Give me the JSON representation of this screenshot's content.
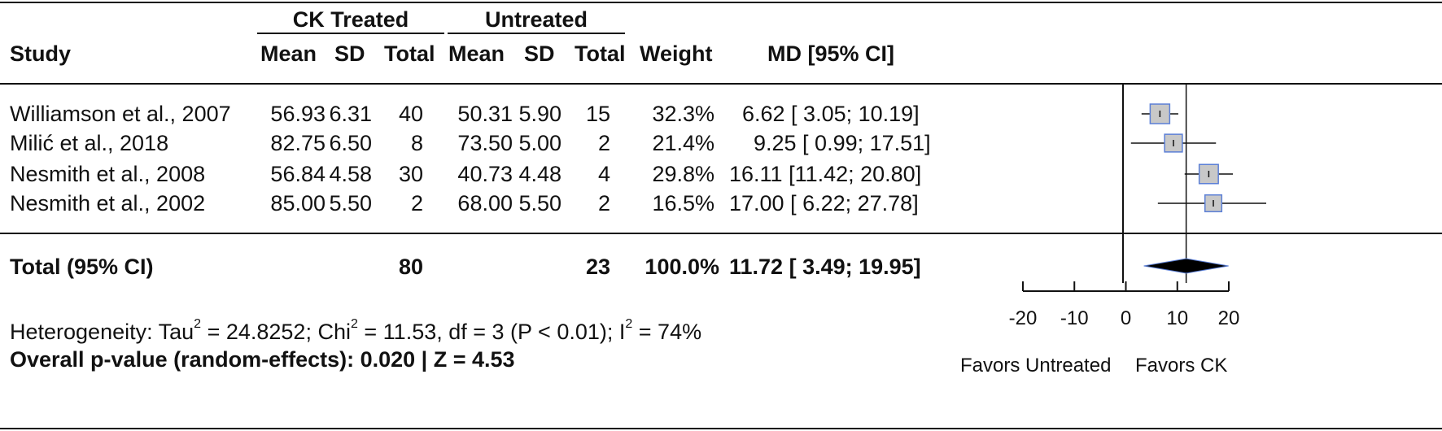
{
  "groups": {
    "treated": "CK Treated",
    "untreated": "Untreated"
  },
  "columns": {
    "study": "Study",
    "mean": "Mean",
    "sd": "SD",
    "total": "Total",
    "weight": "Weight",
    "md": "MD [95% CI]"
  },
  "studies": [
    {
      "name": "Williamson et al., 2007",
      "t_mean": "56.93",
      "t_sd": "6.31",
      "t_total": "40",
      "u_mean": "50.31",
      "u_sd": "5.90",
      "u_total": "15",
      "weight": "32.3%",
      "md": "6.62 [ 3.05; 10.19]"
    },
    {
      "name": "Milić et al., 2018",
      "t_mean": "82.75",
      "t_sd": "6.50",
      "t_total": "8",
      "u_mean": "73.50",
      "u_sd": "5.00",
      "u_total": "2",
      "weight": "21.4%",
      "md": "9.25 [ 0.99; 17.51]"
    },
    {
      "name": "Nesmith et al., 2008",
      "t_mean": "56.84",
      "t_sd": "4.58",
      "t_total": "30",
      "u_mean": "40.73",
      "u_sd": "4.48",
      "u_total": "4",
      "weight": "29.8%",
      "md": "16.11 [11.42; 20.80]"
    },
    {
      "name": "Nesmith et al., 2002",
      "t_mean": "85.00",
      "t_sd": "5.50",
      "t_total": "2",
      "u_mean": "68.00",
      "u_sd": "5.50",
      "u_total": "2",
      "weight": "16.5%",
      "md": "17.00 [ 6.22; 27.78]"
    }
  ],
  "total": {
    "label": "Total (95% CI)",
    "t_total": "80",
    "u_total": "23",
    "weight": "100.0%",
    "md": "11.72 [ 3.49; 19.95]"
  },
  "heterogeneity": {
    "prefix": "Heterogeneity: Tau",
    "tau2": "= 24.8252; Chi",
    "chi2": "= 11.53, df = 3 (P < 0.01); I",
    "i2": "= 74%",
    "sup": "2"
  },
  "overall": "Overall p-value (random-effects): 0.020 | Z = 4.53",
  "chart_data": {
    "type": "forest",
    "xlim": [
      -20,
      20
    ],
    "ticks": [
      -20,
      -10,
      0,
      10,
      20
    ],
    "xlabel_left": "Favors Untreated",
    "xlabel_right": "Favors CK",
    "studies": [
      {
        "md": 6.62,
        "lower": 3.05,
        "upper": 10.19,
        "weight": 32.3
      },
      {
        "md": 9.25,
        "lower": 0.99,
        "upper": 17.51,
        "weight": 21.4
      },
      {
        "md": 16.11,
        "lower": 11.42,
        "upper": 20.8,
        "weight": 29.8
      },
      {
        "md": 17.0,
        "lower": 6.22,
        "upper": 27.78,
        "weight": 16.5
      }
    ],
    "pooled": {
      "md": 11.72,
      "lower": 3.49,
      "upper": 19.95
    },
    "colors": {
      "box_fill": "#c8c8c8",
      "box_stroke": "#5b7fd6",
      "diamond": "#000000"
    }
  }
}
